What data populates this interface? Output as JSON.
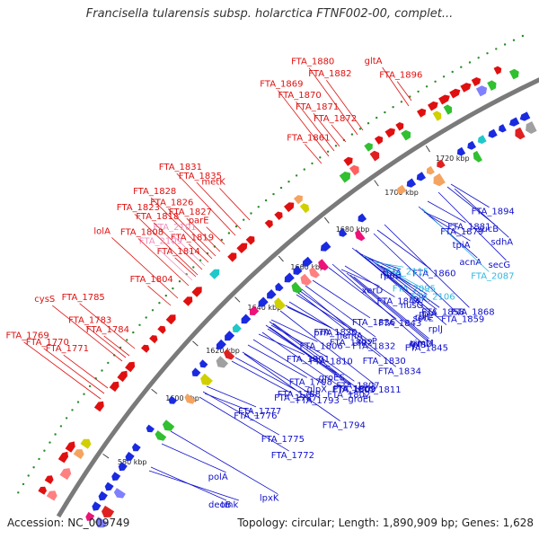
{
  "title": "Francisella tularensis subsp. holarctica FTNF002-00, complet...",
  "footer": {
    "accession": "Accession: NC_009749",
    "summary": "Topology: circular; Length: 1,890,909 bp; Genes: 1,628"
  },
  "colors": {
    "forward_label": "#e01010",
    "reverse_label": "#1010cc",
    "pink_label": "#f090c0",
    "cyan_label": "#30b8e0",
    "backbone": "#7a7a7a"
  },
  "ruler": [
    "580 kbp",
    "1600 kbp",
    "1620 kbp",
    "1640 kbp",
    "1660 kbp",
    "1680 kbp",
    "1700 kbp",
    "1720 kbp"
  ],
  "forward_labels": [
    {
      "text": "FTA_1896",
      "style": "red",
      "ax": 458,
      "ay": 112
    },
    {
      "text": "gltA",
      "style": "red",
      "ax": 455,
      "ay": 118
    },
    {
      "text": "FTA_1882",
      "style": "red",
      "ax": 404,
      "ay": 145
    },
    {
      "text": "FTA_1880",
      "style": "red",
      "ax": 398,
      "ay": 150
    },
    {
      "text": "FTA_1872",
      "style": "red",
      "ax": 385,
      "ay": 158
    },
    {
      "text": "FTA_1871",
      "style": "red",
      "ax": 378,
      "ay": 163
    },
    {
      "text": "FTA_1870",
      "style": "red",
      "ax": 372,
      "ay": 168
    },
    {
      "text": "FTA_1869",
      "style": "red",
      "ax": 366,
      "ay": 174
    },
    {
      "text": "FTA_1861",
      "style": "red",
      "ax": 358,
      "ay": 182
    },
    {
      "text": "metK",
      "style": "red",
      "ax": 278,
      "ay": 245
    },
    {
      "text": "FTA_1835",
      "style": "red",
      "ax": 268,
      "ay": 255
    },
    {
      "text": "FTA_1831",
      "style": "red",
      "ax": 262,
      "ay": 262
    },
    {
      "text": "parE",
      "style": "red",
      "ax": 250,
      "ay": 272
    },
    {
      "text": "FTA_1827",
      "style": "red",
      "ax": 245,
      "ay": 280
    },
    {
      "text": "FTA_1826",
      "style": "red",
      "ax": 240,
      "ay": 285
    },
    {
      "text": "FTA_1828",
      "style": "red",
      "ax": 236,
      "ay": 288
    },
    {
      "text": "FTA_1819",
      "style": "red",
      "ax": 232,
      "ay": 292
    },
    {
      "text": "FTA_2101",
      "style": "pink",
      "ax": 228,
      "ay": 296
    },
    {
      "text": "FTA_1818",
      "style": "red",
      "ax": 225,
      "ay": 300
    },
    {
      "text": "FTA_1823",
      "style": "red",
      "ax": 220,
      "ay": 306
    },
    {
      "text": "FTA_1814",
      "style": "red",
      "ax": 218,
      "ay": 308
    },
    {
      "text": "FTA_2109",
      "style": "pink",
      "ax": 214,
      "ay": 312
    },
    {
      "text": "FTA_1808",
      "style": "red",
      "ax": 210,
      "ay": 318
    },
    {
      "text": "lolA",
      "style": "red",
      "ax": 198,
      "ay": 332
    },
    {
      "text": "FTA_1804",
      "style": "red",
      "ax": 190,
      "ay": 340
    },
    {
      "text": "FTA_1783",
      "style": "red",
      "ax": 140,
      "ay": 398
    },
    {
      "text": "FTA_1785",
      "style": "red",
      "ax": 150,
      "ay": 388
    },
    {
      "text": "cysS",
      "style": "red",
      "ax": 136,
      "ay": 402
    },
    {
      "text": "FTA_1784",
      "style": "red",
      "ax": 144,
      "ay": 396
    },
    {
      "text": "FTA_1771",
      "style": "red",
      "ax": 120,
      "ay": 432
    },
    {
      "text": "FTA_1770",
      "style": "red",
      "ax": 116,
      "ay": 438
    },
    {
      "text": "FTA_1769",
      "style": "red",
      "ax": 112,
      "ay": 444
    }
  ],
  "reverse_labels": [
    {
      "text": "FTA_1894",
      "style": "blue",
      "ax": 502,
      "ay": 205
    },
    {
      "text": "sucB",
      "style": "blue",
      "ax": 498,
      "ay": 208
    },
    {
      "text": "sdhA",
      "style": "blue",
      "ax": 506,
      "ay": 210
    },
    {
      "text": "secG",
      "style": "blue",
      "ax": 488,
      "ay": 214
    },
    {
      "text": "FTA_1868",
      "style": "blue",
      "ax": 428,
      "ay": 250
    },
    {
      "text": "FTA_1881",
      "style": "blue",
      "ax": 476,
      "ay": 224
    },
    {
      "text": "FTA_1860",
      "style": "blue",
      "ax": 420,
      "ay": 256
    },
    {
      "text": "acnA",
      "style": "blue",
      "ax": 466,
      "ay": 230
    },
    {
      "text": "FTA_2087",
      "style": "cyan",
      "ax": 470,
      "ay": 232
    },
    {
      "text": "FTA_1859",
      "style": "blue",
      "ax": 416,
      "ay": 260
    },
    {
      "text": "FTA_1879",
      "style": "blue",
      "ax": 472,
      "ay": 236
    },
    {
      "text": "tpiA",
      "style": "blue",
      "ax": 478,
      "ay": 240
    },
    {
      "text": "nusG",
      "style": "blue",
      "ax": 392,
      "ay": 276
    },
    {
      "text": "secE",
      "style": "blue",
      "ax": 396,
      "ay": 278
    },
    {
      "text": "FTA_1845",
      "style": "blue",
      "ax": 370,
      "ay": 294
    },
    {
      "text": "rpoB",
      "style": "blue",
      "ax": 400,
      "ay": 282
    },
    {
      "text": "FTA_2095",
      "style": "cyan",
      "ax": 404,
      "ay": 284
    },
    {
      "text": "rpsP",
      "style": "blue",
      "ax": 340,
      "ay": 318
    },
    {
      "text": "rplL",
      "style": "blue",
      "ax": 406,
      "ay": 286
    },
    {
      "text": "FTA_1834",
      "style": "blue",
      "ax": 336,
      "ay": 322
    },
    {
      "text": "tufA",
      "style": "blue",
      "ax": 410,
      "ay": 288
    },
    {
      "text": "hemA",
      "style": "blue",
      "ax": 330,
      "ay": 328
    },
    {
      "text": "FTA_1843",
      "style": "blue",
      "ax": 366,
      "ay": 298
    },
    {
      "text": "FTA_1830",
      "style": "blue",
      "ax": 332,
      "ay": 326
    },
    {
      "text": "rplJ",
      "style": "blue",
      "ax": 414,
      "ay": 290
    },
    {
      "text": "FTA_2115",
      "style": "cyan",
      "ax": 418,
      "ay": 292
    },
    {
      "text": "FTA_1822",
      "style": "blue",
      "ax": 322,
      "ay": 336
    },
    {
      "text": "FTA_1832",
      "style": "blue",
      "ax": 334,
      "ay": 324
    },
    {
      "text": "rplA",
      "style": "blue",
      "ax": 420,
      "ay": 294
    },
    {
      "text": "FTA_1811",
      "style": "blue",
      "ax": 312,
      "ay": 346
    },
    {
      "text": "prfA",
      "style": "blue",
      "ax": 318,
      "ay": 340
    },
    {
      "text": "FTA_1836",
      "style": "blue",
      "ax": 348,
      "ay": 312
    },
    {
      "text": "rplK",
      "style": "blue",
      "ax": 424,
      "ay": 296
    },
    {
      "text": "FTA_1858",
      "style": "blue",
      "ax": 428,
      "ay": 298
    },
    {
      "text": "groEL",
      "style": "blue",
      "ax": 300,
      "ay": 358
    },
    {
      "text": "xerD",
      "style": "blue",
      "ax": 380,
      "ay": 300
    },
    {
      "text": "FTA_1844",
      "style": "blue",
      "ax": 384,
      "ay": 296
    },
    {
      "text": "FTA_2106",
      "style": "cyan",
      "ax": 432,
      "ay": 300
    },
    {
      "text": "FTA_1803",
      "style": "blue",
      "ax": 296,
      "ay": 362
    },
    {
      "text": "rplS",
      "style": "blue",
      "ax": 386,
      "ay": 304
    },
    {
      "text": "FTA_1806",
      "style": "blue",
      "ax": 302,
      "ay": 356
    },
    {
      "text": "FTA_1798",
      "style": "blue",
      "ax": 276,
      "ay": 384
    },
    {
      "text": "glpX",
      "style": "blue",
      "ax": 282,
      "ay": 378
    },
    {
      "text": "FTA_1807",
      "style": "blue",
      "ax": 304,
      "ay": 360
    },
    {
      "text": "trmD",
      "style": "blue",
      "ax": 390,
      "ay": 306
    },
    {
      "text": "FTA_1820",
      "style": "blue",
      "ax": 320,
      "ay": 342
    },
    {
      "text": "FTA_1788",
      "style": "blue",
      "ax": 262,
      "ay": 398
    },
    {
      "text": "FTA_1793",
      "style": "blue",
      "ax": 270,
      "ay": 392
    },
    {
      "text": "FTA_1809",
      "style": "blue",
      "ax": 300,
      "ay": 364
    },
    {
      "text": "rimM",
      "style": "blue",
      "ax": 394,
      "ay": 308
    },
    {
      "text": "FTA_1777",
      "style": "blue",
      "ax": 230,
      "ay": 430
    },
    {
      "text": "FTA_1787",
      "style": "blue",
      "ax": 258,
      "ay": 402
    },
    {
      "text": "groES",
      "style": "blue",
      "ax": 298,
      "ay": 366
    },
    {
      "text": "FTA_1772",
      "style": "blue",
      "ax": 222,
      "ay": 442
    },
    {
      "text": "FTA_1794",
      "style": "blue",
      "ax": 272,
      "ay": 394
    },
    {
      "text": "FTA_1801",
      "style": "blue",
      "ax": 288,
      "ay": 372
    },
    {
      "text": "FTA_1810",
      "style": "blue",
      "ax": 302,
      "ay": 362
    },
    {
      "text": "FTA_1775",
      "style": "blue",
      "ax": 226,
      "ay": 436
    },
    {
      "text": "FTA_1802",
      "style": "blue",
      "ax": 292,
      "ay": 370
    },
    {
      "text": "lpxK",
      "style": "blue",
      "ax": 190,
      "ay": 480
    },
    {
      "text": "FTA_1776",
      "style": "blue",
      "ax": 228,
      "ay": 438
    },
    {
      "text": "polA",
      "style": "blue",
      "ax": 180,
      "ay": 494
    },
    {
      "text": "deoB",
      "style": "blue",
      "ax": 168,
      "ay": 520
    },
    {
      "text": "tmk",
      "style": "blue",
      "ax": 166,
      "ay": 524
    }
  ]
}
